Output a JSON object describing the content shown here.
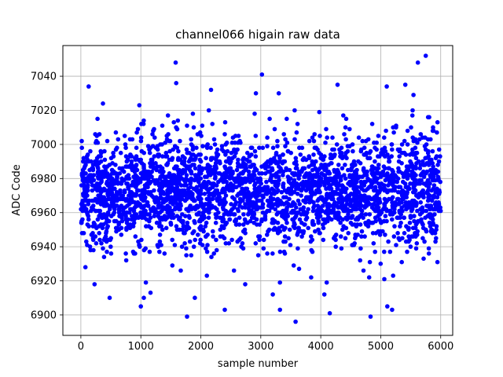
{
  "chart_data": {
    "type": "scatter",
    "title": "channel066 higain raw data",
    "xlabel": "sample number",
    "ylabel": "ADC Code",
    "xlim": [
      -300,
      6200
    ],
    "ylim": [
      6888,
      7058
    ],
    "x_ticks": [
      0,
      1000,
      2000,
      3000,
      4000,
      5000,
      6000
    ],
    "y_ticks": [
      6900,
      6920,
      6940,
      6960,
      6980,
      7000,
      7020,
      7040
    ],
    "x_tick_labels": [
      "0",
      "1000",
      "2000",
      "3000",
      "4000",
      "5000",
      "6000"
    ],
    "y_tick_labels": [
      "6900",
      "6920",
      "6940",
      "6960",
      "6980",
      "7000",
      "7020",
      "7040"
    ],
    "grid": true,
    "legend": "none",
    "marker_color": "#0000ff",
    "series": [
      {
        "n_samples": 6000,
        "typical_range": [
          6930,
          7005
        ],
        "core_center": 6973,
        "notable_points": [
          {
            "x": 1580,
            "y": 7048
          },
          {
            "x": 3020,
            "y": 7041
          },
          {
            "x": 5750,
            "y": 7052
          },
          {
            "x": 5620,
            "y": 7048
          },
          {
            "x": 130,
            "y": 7034
          },
          {
            "x": 1590,
            "y": 7036
          },
          {
            "x": 4280,
            "y": 7035
          },
          {
            "x": 5410,
            "y": 7035
          },
          {
            "x": 5100,
            "y": 7034
          },
          {
            "x": 2170,
            "y": 7032
          },
          {
            "x": 3300,
            "y": 7030
          },
          {
            "x": 3580,
            "y": 6896
          },
          {
            "x": 1770,
            "y": 6899
          },
          {
            "x": 4830,
            "y": 6899
          },
          {
            "x": 4150,
            "y": 6901
          },
          {
            "x": 1000,
            "y": 6905
          },
          {
            "x": 5110,
            "y": 6905
          },
          {
            "x": 2400,
            "y": 6903
          },
          {
            "x": 3320,
            "y": 6903
          },
          {
            "x": 5190,
            "y": 6903
          },
          {
            "x": 1900,
            "y": 6910
          },
          {
            "x": 480,
            "y": 6910
          },
          {
            "x": 1050,
            "y": 6910
          },
          {
            "x": 3200,
            "y": 6912
          },
          {
            "x": 4060,
            "y": 6912
          }
        ]
      }
    ]
  }
}
